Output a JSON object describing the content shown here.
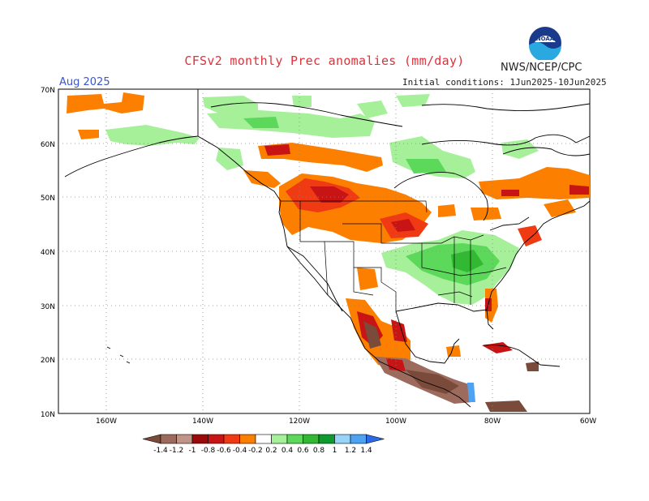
{
  "header": {
    "title": "CFSv2 monthly Prec anomalies (mm/day)",
    "org": "NWS/NCEP/CPC",
    "month": "Aug 2025",
    "initial_conditions": "Initial conditions: 1Jun2025-10Jun2025",
    "logo_text": "NOAA"
  },
  "map": {
    "lon_labels": [
      "160W",
      "140W",
      "120W",
      "100W",
      "80W",
      "60W"
    ],
    "lat_labels": [
      "70N",
      "60N",
      "50N",
      "40N",
      "30N",
      "20N",
      "10N"
    ],
    "gridlines": true
  },
  "legend": {
    "labels": [
      "-1.4",
      "-1.2",
      "-1",
      "-0.8",
      "-0.6",
      "-0.4",
      "-0.2",
      "0.2",
      "0.4",
      "0.6",
      "0.8",
      "1",
      "1.2",
      "1.4"
    ],
    "colors": [
      "#7a4a3a",
      "#9c6b5e",
      "#c09488",
      "#9a0a0a",
      "#c81414",
      "#ef3a14",
      "#fc7f00",
      "#ffffff",
      "#a6f09a",
      "#5cd85a",
      "#32b832",
      "#0e9a2e",
      "#98d4f8",
      "#4da2f2",
      "#2a6ae6"
    ]
  },
  "anomaly_colors": {
    "dry_orange": "#fc7f00",
    "dry_redorange": "#ef3a14",
    "dry_red": "#c81414",
    "dry_darkred": "#9a0a0a",
    "dry_brown": "#7a4a3a",
    "wet_light": "#a6f09a",
    "wet_mid": "#5cd85a",
    "wet_dark": "#32b832",
    "wet_blue": "#4da2f2"
  }
}
